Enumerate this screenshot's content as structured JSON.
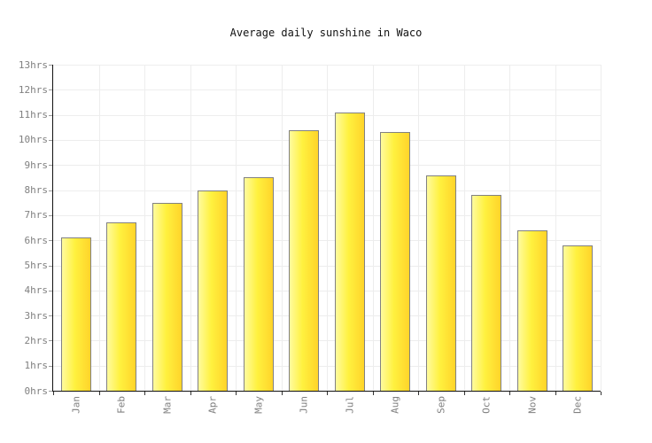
{
  "chart_data": {
    "type": "bar",
    "title": "Average daily sunshine in Waco",
    "categories": [
      "Jan",
      "Feb",
      "Mar",
      "Apr",
      "May",
      "Jun",
      "Jul",
      "Aug",
      "Sep",
      "Oct",
      "Nov",
      "Dec"
    ],
    "values": [
      6.1,
      6.7,
      7.5,
      8.0,
      8.5,
      10.4,
      11.1,
      10.3,
      8.6,
      7.8,
      6.4,
      5.8
    ],
    "unit": "hrs",
    "xlabel": "",
    "ylabel": "",
    "ylim": [
      0,
      13
    ],
    "y_tick_labels": [
      "0hrs",
      "1hrs",
      "2hrs",
      "3hrs",
      "4hrs",
      "5hrs",
      "6hrs",
      "7hrs",
      "8hrs",
      "9hrs",
      "10hrs",
      "11hrs",
      "12hrs",
      "13hrs"
    ],
    "grid": true,
    "legend_position": "none",
    "colors": {
      "bar_gradient_left": "#FFFB9E",
      "bar_gradient_mid": "#FFF13F",
      "bar_gradient_right": "#FFD42A",
      "bar_border": "#818181",
      "axis": "#111111",
      "gridline": "#EDEDED",
      "y_tick": "#999999",
      "x_tick": "#333333",
      "label_text": "#808080",
      "title_text": "#111111",
      "background": "#FFFFFF"
    }
  }
}
